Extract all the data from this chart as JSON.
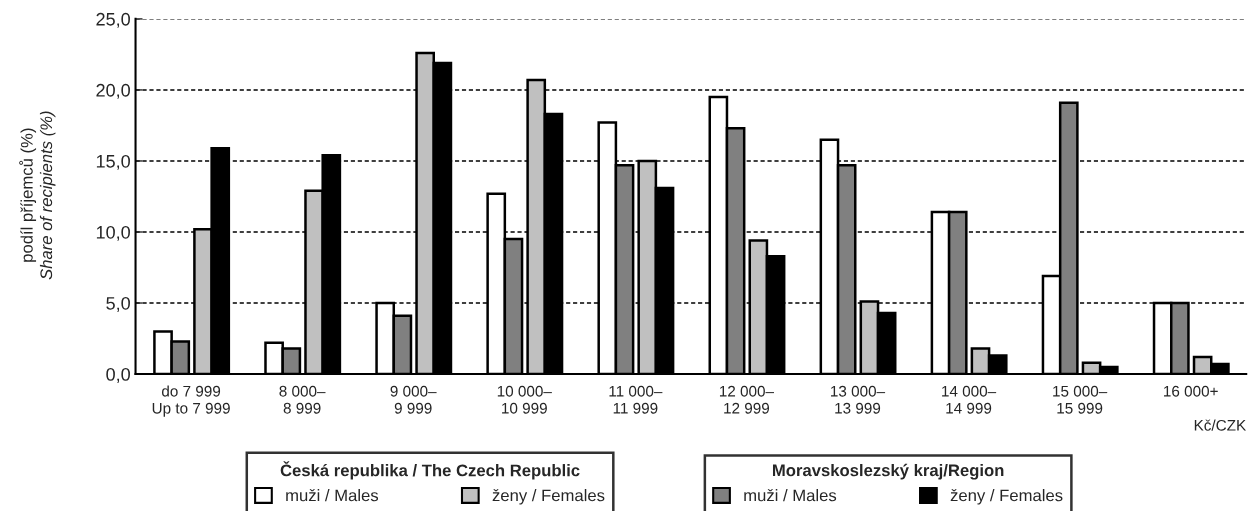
{
  "chart_data": {
    "type": "bar",
    "ylabel": "podíl příjemců (%)\nShare of recipients (%)",
    "categories": [
      "do 7 999\nUp to 7 999",
      "8 000–\n8 999",
      "9 000–\n9 999",
      "10 000–\n10 999",
      "11 000–\n11 999",
      "12 000–\n12 999",
      "13 000–\n13 999",
      "14 000–\n14 999",
      "15 000–\n15 999",
      "16 000+\n "
    ],
    "series": [
      {
        "name": "muži / Males",
        "color": "#ffffff",
        "values": [
          3.0,
          2.2,
          5.0,
          12.7,
          17.7,
          19.5,
          16.5,
          11.4,
          6.9,
          5.0
        ]
      },
      {
        "name": "ženy / Females",
        "color": "#c0c0c0",
        "values": [
          10.2,
          12.9,
          22.6,
          20.7,
          15.0,
          9.4,
          5.1,
          1.8,
          0.8,
          1.2
        ]
      },
      {
        "name": "muži / Males",
        "color": "#808080",
        "values": [
          2.3,
          1.8,
          4.1,
          9.5,
          14.7,
          17.3,
          14.7,
          11.4,
          19.1,
          5.0
        ]
      },
      {
        "name": "ženy / Females",
        "color": "#000000",
        "values": [
          15.9,
          15.4,
          21.9,
          18.3,
          13.1,
          8.3,
          4.3,
          1.3,
          0.5,
          0.7
        ]
      }
    ],
    "legend_title": [
      "Česká republika / The Czech Republic",
      "Moravskoslezský kraj/Region"
    ],
    "annotations": [
      "Kč/CZK"
    ],
    "ylim": [
      0,
      25
    ],
    "yticks": [
      {
        "value": 0,
        "label": "0,0"
      },
      {
        "value": 5,
        "label": "5,0"
      },
      {
        "value": 10,
        "label": "10,0"
      },
      {
        "value": 15,
        "label": "15,0"
      },
      {
        "value": 20,
        "label": "20,0"
      },
      {
        "value": 25,
        "label": "25,0"
      }
    ],
    "grid": "y",
    "legend": "bottom"
  }
}
